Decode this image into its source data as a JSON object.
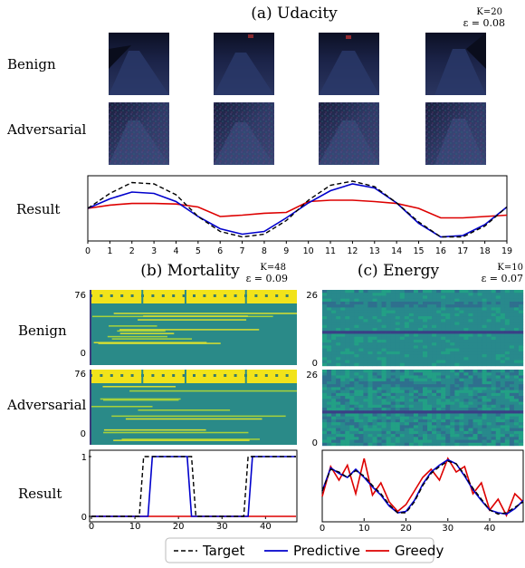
{
  "panels": {
    "udacity": {
      "title": "(a) Udacity",
      "k_label": "K=20",
      "eps_label": "ε = 0.08",
      "rows": [
        "Benign",
        "Adversarial",
        "Result"
      ]
    },
    "mortality": {
      "title": "(b) Mortality",
      "k_label": "K=48",
      "eps_label": "ε = 0.09",
      "rows": [
        "Benign",
        "Adversarial",
        "Result"
      ],
      "heatmap_yticks": [
        "76",
        "0"
      ]
    },
    "energy": {
      "title": "(c) Energy",
      "k_label": "K=10",
      "eps_label": "ε = 0.07",
      "heatmap_yticks": [
        "26",
        "0"
      ]
    }
  },
  "legend": {
    "items": [
      {
        "label": "Target",
        "color": "#000000",
        "style": "dashed"
      },
      {
        "label": "Predictive",
        "color": "#0000cc",
        "style": "solid"
      },
      {
        "label": "Greedy",
        "color": "#dd0000",
        "style": "solid"
      }
    ]
  },
  "chart_data": [
    {
      "type": "line",
      "panel": "(a) Udacity",
      "x": [
        0,
        1,
        2,
        3,
        4,
        5,
        6,
        7,
        8,
        9,
        10,
        11,
        12,
        13,
        14,
        15,
        16,
        17,
        18,
        19
      ],
      "xlim": [
        0,
        19
      ],
      "ylim": [
        -1.2,
        1.2
      ],
      "xticks": [
        "0",
        "1",
        "2",
        "3",
        "4",
        "5",
        "6",
        "7",
        "8",
        "9",
        "10",
        "11",
        "12",
        "13",
        "14",
        "15",
        "16",
        "17",
        "18",
        "19"
      ],
      "series": [
        {
          "name": "Target",
          "values": [
            0.0,
            0.55,
            0.95,
            0.9,
            0.5,
            -0.3,
            -0.85,
            -1.05,
            -0.95,
            -0.45,
            0.3,
            0.85,
            1.0,
            0.8,
            0.2,
            -0.5,
            -1.05,
            -1.05,
            -0.65,
            0.05
          ]
        },
        {
          "name": "Predictive",
          "values": [
            0.0,
            0.35,
            0.6,
            0.55,
            0.25,
            -0.3,
            -0.75,
            -0.95,
            -0.85,
            -0.35,
            0.2,
            0.65,
            0.9,
            0.75,
            0.2,
            -0.55,
            -1.05,
            -1.0,
            -0.6,
            0.05
          ]
        },
        {
          "name": "Greedy",
          "values": [
            0.0,
            0.12,
            0.18,
            0.18,
            0.16,
            0.05,
            -0.3,
            -0.25,
            -0.18,
            -0.15,
            0.25,
            0.3,
            0.3,
            0.25,
            0.18,
            0.0,
            -0.35,
            -0.35,
            -0.3,
            -0.25
          ]
        }
      ]
    },
    {
      "type": "line",
      "panel": "(b) Mortality",
      "x": [
        0,
        11,
        12,
        22,
        23,
        35,
        36,
        47
      ],
      "xlim": [
        0,
        47
      ],
      "ylim": [
        0,
        1
      ],
      "xticks": [
        "0",
        "10",
        "20",
        "30",
        "40"
      ],
      "yticks": [
        "0",
        "1"
      ],
      "series": [
        {
          "name": "Target",
          "points": [
            [
              0,
              0
            ],
            [
              11,
              0
            ],
            [
              12,
              1
            ],
            [
              23,
              1
            ],
            [
              24,
              0
            ],
            [
              35,
              0
            ],
            [
              36,
              1
            ],
            [
              47,
              1
            ]
          ]
        },
        {
          "name": "Predictive",
          "points": [
            [
              0,
              0
            ],
            [
              13,
              0
            ],
            [
              14,
              1
            ],
            [
              22,
              1
            ],
            [
              23,
              0
            ],
            [
              36,
              0
            ],
            [
              37,
              1
            ],
            [
              47,
              1
            ]
          ]
        },
        {
          "name": "Greedy",
          "points": [
            [
              0,
              0
            ],
            [
              47,
              0
            ]
          ]
        }
      ]
    },
    {
      "type": "line",
      "panel": "(c) Energy",
      "x": [
        0,
        2,
        4,
        6,
        8,
        10,
        12,
        14,
        16,
        18,
        20,
        22,
        24,
        26,
        28,
        30,
        32,
        34,
        36,
        38,
        40,
        42,
        44,
        46,
        48
      ],
      "xlim": [
        0,
        48
      ],
      "ylim": [
        -1.2,
        1.2
      ],
      "xticks": [
        "0",
        "10",
        "20",
        "30",
        "40"
      ],
      "series": [
        {
          "name": "Target",
          "values": [
            -0.2,
            0.6,
            0.5,
            0.3,
            0.55,
            0.35,
            0.0,
            -0.3,
            -0.7,
            -1.0,
            -1.0,
            -0.6,
            0.0,
            0.45,
            0.7,
            0.9,
            0.8,
            0.4,
            -0.1,
            -0.5,
            -0.9,
            -1.05,
            -1.0,
            -0.8,
            -0.6
          ]
        },
        {
          "name": "Predictive",
          "values": [
            -0.2,
            0.65,
            0.45,
            0.3,
            0.6,
            0.3,
            -0.05,
            -0.35,
            -0.75,
            -1.0,
            -0.95,
            -0.55,
            0.05,
            0.5,
            0.75,
            0.95,
            0.8,
            0.35,
            -0.15,
            -0.55,
            -0.9,
            -1.0,
            -1.05,
            -0.85,
            -0.55
          ]
        },
        {
          "name": "Greedy",
          "values": [
            -0.4,
            0.7,
            0.2,
            0.75,
            -0.3,
            1.0,
            -0.35,
            0.1,
            -0.6,
            -0.95,
            -0.7,
            -0.2,
            0.3,
            0.6,
            0.2,
            1.0,
            0.5,
            0.7,
            -0.3,
            0.1,
            -0.9,
            -0.5,
            -1.1,
            -0.3,
            -0.6
          ]
        }
      ]
    }
  ]
}
